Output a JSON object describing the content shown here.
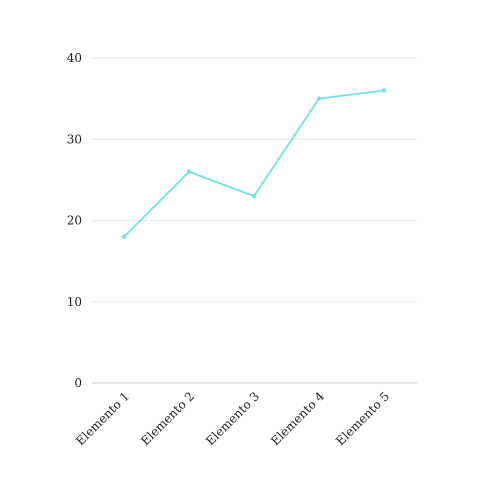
{
  "chart_data": {
    "type": "line",
    "categories": [
      "Elemento 1",
      "Elemento 2",
      "Elemento 3",
      "Elemento 4",
      "Elemento 5"
    ],
    "series": [
      {
        "values": [
          18,
          26,
          23,
          35,
          36
        ]
      }
    ],
    "ylim": [
      0,
      40
    ],
    "yticks": [
      0,
      10,
      20,
      30,
      40
    ],
    "grid": true,
    "colors": {
      "series": "#72e0e8",
      "grid": "#e6e6e6",
      "axis": "#cccccc"
    }
  }
}
